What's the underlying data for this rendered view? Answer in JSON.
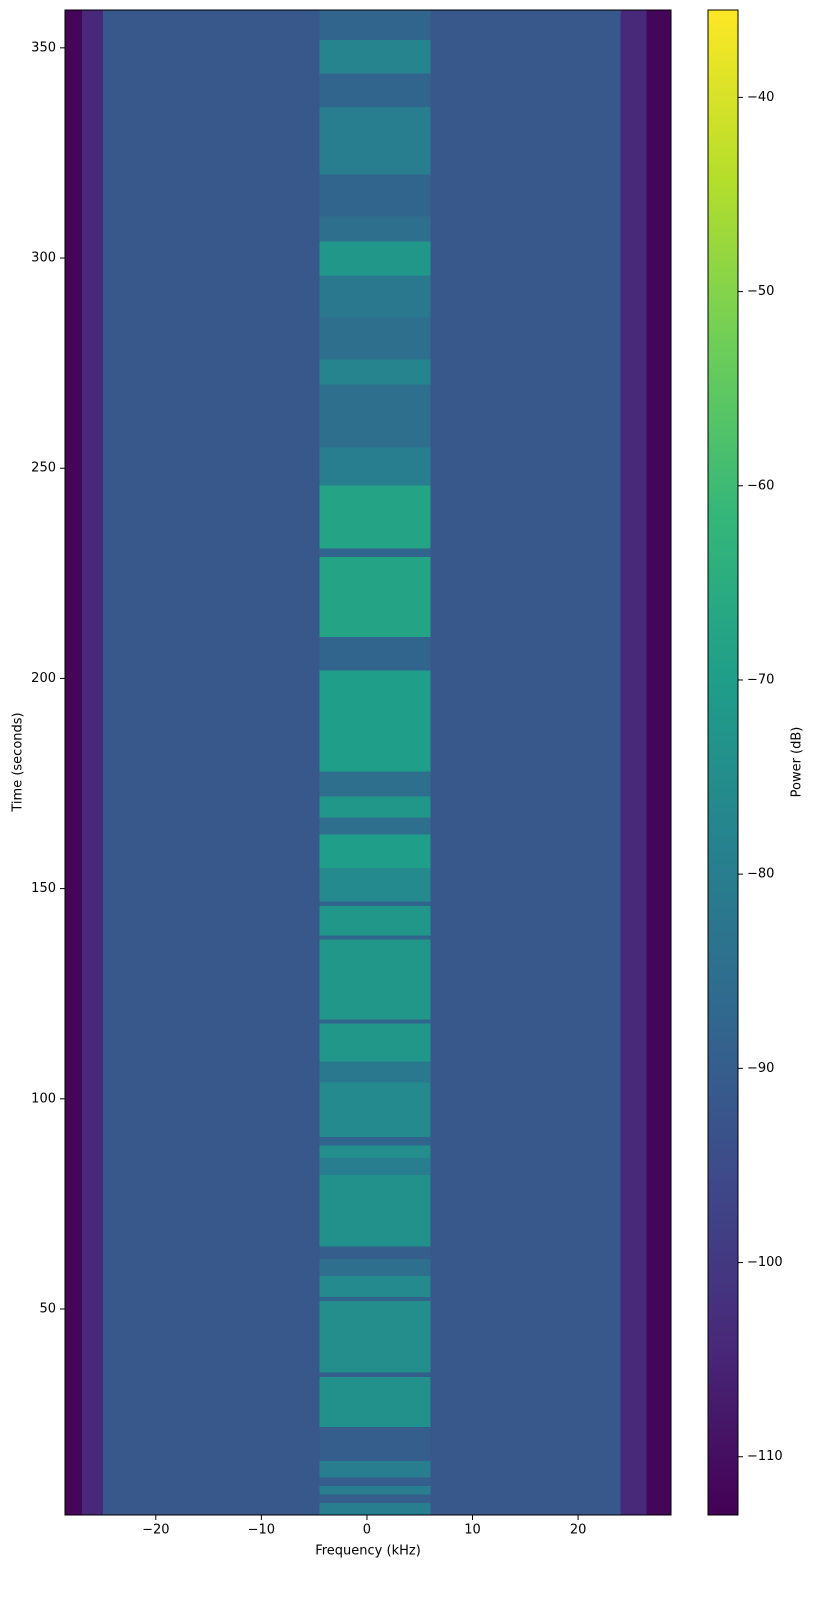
{
  "chart_data": {
    "type": "heatmap",
    "cmap": "viridis",
    "x_label": "Frequency (kHz)",
    "y_label": "Time (seconds)",
    "colorbar_label": "Power (dB)",
    "xlim": [
      -28.6,
      28.8
    ],
    "ylim": [
      1,
      359
    ],
    "clim": [
      -113,
      -35.5
    ],
    "xticks": [
      {
        "value": -20,
        "label": "−20"
      },
      {
        "value": -10,
        "label": "−10"
      },
      0,
      10,
      20
    ],
    "yticks": [
      50,
      100,
      150,
      200,
      250,
      300,
      350
    ],
    "cticks": [
      {
        "value": -110,
        "label": "−110"
      },
      {
        "value": -100,
        "label": "−100"
      },
      {
        "value": -90,
        "label": "−90"
      },
      {
        "value": -80,
        "label": "−80"
      },
      {
        "value": -70,
        "label": "−70"
      },
      {
        "value": -60,
        "label": "−60"
      },
      {
        "value": -50,
        "label": "−50"
      },
      {
        "value": -40,
        "label": "−40"
      }
    ],
    "x_edges": [
      -28.6,
      -27,
      -25,
      -4.5,
      6,
      24,
      26.5,
      28.8
    ],
    "y_edges": [
      1,
      4,
      6,
      8,
      10,
      14,
      22,
      34,
      35,
      52,
      53,
      58,
      62,
      65,
      82,
      86,
      89,
      91,
      104,
      109,
      118,
      119,
      138,
      139,
      146,
      147,
      155,
      163,
      167,
      172,
      178,
      202,
      210,
      229,
      231,
      246,
      255,
      270,
      276,
      286,
      296,
      304,
      310,
      320,
      336,
      344,
      352,
      359
    ],
    "z": [
      [
        -112,
        -104,
        -92,
        -80,
        -92,
        -104,
        -112
      ],
      [
        -112,
        -104,
        -92,
        -90,
        -92,
        -104,
        -112
      ],
      [
        -112,
        -104,
        -92,
        -80,
        -92,
        -104,
        -112
      ],
      [
        -112,
        -104,
        -92,
        -90,
        -92,
        -104,
        -112
      ],
      [
        -112,
        -104,
        -92,
        -80,
        -92,
        -104,
        -112
      ],
      [
        -112,
        -104,
        -92,
        -90,
        -92,
        -104,
        -112
      ],
      [
        -112,
        -104,
        -92,
        -74,
        -92,
        -104,
        -112
      ],
      [
        -112,
        -104,
        -92,
        -90,
        -92,
        -104,
        -112
      ],
      [
        -112,
        -104,
        -92,
        -75,
        -92,
        -104,
        -112
      ],
      [
        -112,
        -104,
        -92,
        -88,
        -92,
        -104,
        -112
      ],
      [
        -112,
        -104,
        -92,
        -76,
        -92,
        -104,
        -112
      ],
      [
        -112,
        -104,
        -92,
        -85,
        -92,
        -104,
        -112
      ],
      [
        -112,
        -104,
        -92,
        -90,
        -92,
        -104,
        -112
      ],
      [
        -112,
        -104,
        -92,
        -74,
        -92,
        -104,
        -112
      ],
      [
        -112,
        -104,
        -92,
        -80,
        -92,
        -104,
        -112
      ],
      [
        -112,
        -104,
        -92,
        -75,
        -92,
        -104,
        -112
      ],
      [
        -112,
        -104,
        -92,
        -88,
        -92,
        -104,
        -112
      ],
      [
        -112,
        -104,
        -92,
        -76,
        -92,
        -104,
        -112
      ],
      [
        -112,
        -104,
        -92,
        -82,
        -92,
        -104,
        -112
      ],
      [
        -112,
        -104,
        -92,
        -72,
        -92,
        -104,
        -112
      ],
      [
        -112,
        -104,
        -92,
        -88,
        -92,
        -104,
        -112
      ],
      [
        -112,
        -104,
        -92,
        -72,
        -92,
        -104,
        -112
      ],
      [
        -112,
        -104,
        -92,
        -88,
        -92,
        -104,
        -112
      ],
      [
        -112,
        -104,
        -92,
        -72,
        -92,
        -104,
        -112
      ],
      [
        -112,
        -104,
        -92,
        -88,
        -92,
        -104,
        -112
      ],
      [
        -112,
        -104,
        -92,
        -76,
        -92,
        -104,
        -112
      ],
      [
        -112,
        -104,
        -92,
        -70,
        -92,
        -104,
        -112
      ],
      [
        -112,
        -104,
        -92,
        -85,
        -92,
        -104,
        -112
      ],
      [
        -112,
        -104,
        -92,
        -72,
        -92,
        -104,
        -112
      ],
      [
        -112,
        -104,
        -92,
        -85,
        -92,
        -104,
        -112
      ],
      [
        -112,
        -104,
        -92,
        -70,
        -92,
        -104,
        -112
      ],
      [
        -112,
        -104,
        -92,
        -88,
        -92,
        -104,
        -112
      ],
      [
        -112,
        -104,
        -92,
        -68,
        -92,
        -104,
        -112
      ],
      [
        -112,
        -104,
        -92,
        -88,
        -92,
        -104,
        -112
      ],
      [
        -112,
        -104,
        -92,
        -68,
        -92,
        -104,
        -112
      ],
      [
        -112,
        -104,
        -92,
        -80,
        -92,
        -104,
        -112
      ],
      [
        -112,
        -104,
        -92,
        -85,
        -92,
        -104,
        -112
      ],
      [
        -112,
        -104,
        -92,
        -78,
        -92,
        -104,
        -112
      ],
      [
        -112,
        -104,
        -92,
        -85,
        -92,
        -104,
        -112
      ],
      [
        -112,
        -104,
        -92,
        -82,
        -92,
        -104,
        -112
      ],
      [
        -112,
        -104,
        -92,
        -72,
        -92,
        -104,
        -112
      ],
      [
        -112,
        -104,
        -92,
        -85,
        -92,
        -104,
        -112
      ],
      [
        -112,
        -104,
        -92,
        -88,
        -92,
        -104,
        -112
      ],
      [
        -112,
        -104,
        -92,
        -80,
        -92,
        -104,
        -112
      ],
      [
        -112,
        -104,
        -92,
        -88,
        -92,
        -104,
        -112
      ],
      [
        -112,
        -104,
        -92,
        -78,
        -92,
        -104,
        -112
      ],
      [
        -112,
        -104,
        -92,
        -88,
        -92,
        -104,
        -112
      ]
    ]
  }
}
